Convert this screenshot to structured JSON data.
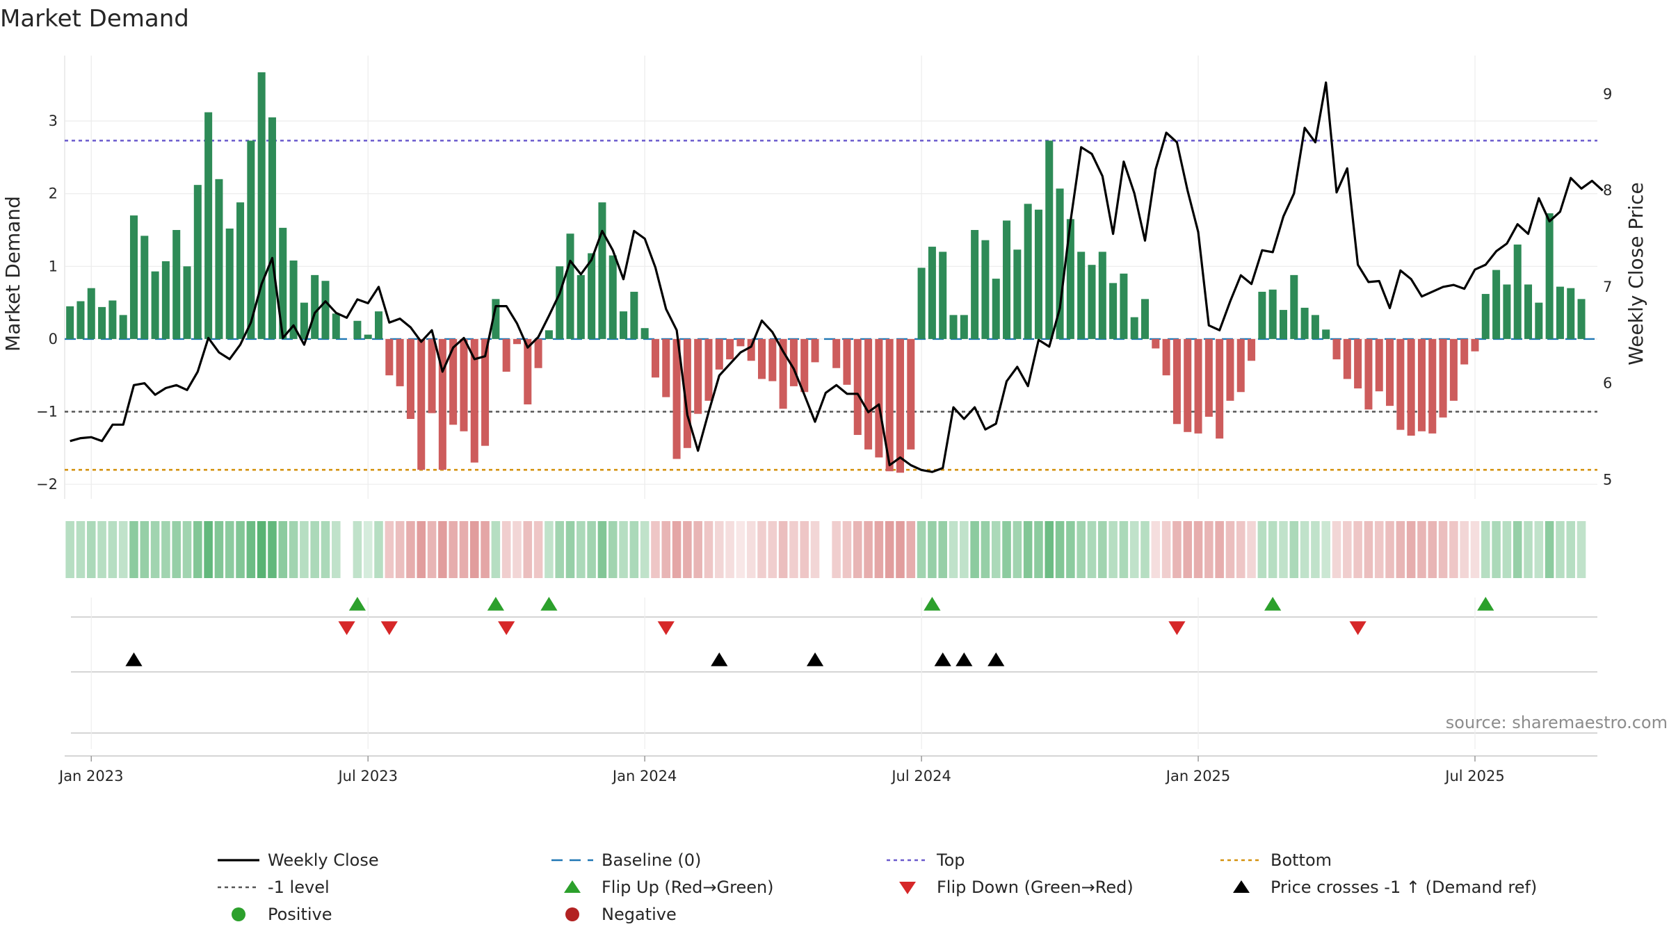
{
  "chart_data": {
    "type": "bar",
    "title": "Market Demand",
    "ylabel": "Market Demand",
    "ylabel_right": "Weekly Close Price",
    "source": "source: sharemaestro.com",
    "ylim": [
      -2.2,
      3.9
    ],
    "ylim_right": [
      4.8,
      9.4
    ],
    "yticks": [
      {
        "v": -2,
        "label": "−2"
      },
      {
        "v": -1,
        "label": "−1"
      },
      {
        "v": 0,
        "label": "0"
      },
      {
        "v": 1,
        "label": "1"
      },
      {
        "v": 2,
        "label": "2"
      },
      {
        "v": 3,
        "label": "3"
      }
    ],
    "yticks_right": [
      {
        "v": 5,
        "label": "5"
      },
      {
        "v": 6,
        "label": "6"
      },
      {
        "v": 7,
        "label": "7"
      },
      {
        "v": 8,
        "label": "8"
      },
      {
        "v": 9,
        "label": "9"
      }
    ],
    "x_start": "2022-12-19",
    "week_count": 144,
    "xticks": [
      {
        "week": 2,
        "label": "Jan 2023"
      },
      {
        "week": 28,
        "label": "Jul 2023"
      },
      {
        "week": 54,
        "label": "Jan 2024"
      },
      {
        "week": 80,
        "label": "Jul 2024"
      },
      {
        "week": 106,
        "label": "Jan 2025"
      },
      {
        "week": 132,
        "label": "Jul 2025"
      }
    ],
    "reference_lines": [
      {
        "name": "Baseline (0)",
        "value": 0,
        "color": "#1f77b4"
      },
      {
        "name": "Top",
        "value": 2.73,
        "color": "#6a5acd"
      },
      {
        "name": "-1 level",
        "value": -1,
        "color": "#555555"
      },
      {
        "name": "Bottom",
        "value": -1.8,
        "color": "#d4920f"
      }
    ],
    "colors": {
      "positive": "#2e8b57",
      "negative": "#cd5c5c",
      "price": "#000000",
      "flip_up": "#2ca02c",
      "flip_down": "#d62728",
      "cross": "#000000",
      "legend_positive": "#2ca02c",
      "legend_negative": "#b22222"
    },
    "demand": [
      0.45,
      0.52,
      0.7,
      0.44,
      0.53,
      0.33,
      1.7,
      1.42,
      0.93,
      1.07,
      1.5,
      1.0,
      2.12,
      3.12,
      2.2,
      1.52,
      1.88,
      2.73,
      3.67,
      3.05,
      1.53,
      1.08,
      0.5,
      0.88,
      0.8,
      0.35,
      0.0,
      0.25,
      0.06,
      0.38,
      -0.5,
      -0.65,
      -1.1,
      -1.8,
      -1.02,
      -1.8,
      -1.18,
      -1.27,
      -1.7,
      -1.47,
      0.55,
      -0.45,
      -0.07,
      -0.9,
      -0.4,
      0.12,
      1.0,
      1.45,
      0.88,
      1.18,
      1.88,
      1.15,
      0.38,
      0.65,
      0.15,
      -0.53,
      -0.8,
      -1.65,
      -1.5,
      -1.03,
      -0.85,
      -0.42,
      -0.28,
      -0.1,
      -0.3,
      -0.55,
      -0.58,
      -0.96,
      -0.65,
      -0.73,
      -0.32,
      0.0,
      -0.4,
      -0.63,
      -1.32,
      -1.52,
      -1.63,
      -1.82,
      -1.84,
      -1.52,
      0.98,
      1.27,
      1.2,
      0.33,
      0.33,
      1.5,
      1.36,
      0.83,
      1.63,
      1.23,
      1.86,
      1.78,
      2.73,
      2.07,
      1.65,
      1.2,
      1.02,
      1.2,
      0.77,
      0.9,
      0.3,
      0.55,
      -0.13,
      -0.5,
      -1.17,
      -1.28,
      -1.3,
      -1.07,
      -1.37,
      -0.85,
      -0.73,
      -0.3,
      0.65,
      0.68,
      0.4,
      0.88,
      0.43,
      0.33,
      0.13,
      -0.28,
      -0.55,
      -0.68,
      -0.97,
      -0.72,
      -0.92,
      -1.25,
      -1.33,
      -1.27,
      -1.3,
      -1.08,
      -0.85,
      -0.35,
      -0.17,
      0.62,
      0.95,
      0.75,
      1.3,
      0.75,
      0.5,
      1.73,
      0.72,
      0.7,
      0.55
    ],
    "price": [
      5.4,
      5.43,
      5.44,
      5.4,
      5.57,
      5.57,
      5.98,
      6.0,
      5.88,
      5.95,
      5.98,
      5.93,
      6.12,
      6.47,
      6.32,
      6.25,
      6.4,
      6.63,
      7.03,
      7.3,
      6.47,
      6.6,
      6.4,
      6.73,
      6.85,
      6.73,
      6.68,
      6.87,
      6.83,
      7.0,
      6.63,
      6.67,
      6.58,
      6.43,
      6.55,
      6.12,
      6.37,
      6.47,
      6.25,
      6.28,
      6.8,
      6.8,
      6.62,
      6.37,
      6.48,
      6.7,
      6.93,
      7.27,
      7.13,
      7.28,
      7.58,
      7.38,
      7.08,
      7.58,
      7.5,
      7.2,
      6.77,
      6.55,
      5.67,
      5.3,
      5.7,
      6.08,
      6.2,
      6.32,
      6.38,
      6.65,
      6.53,
      6.33,
      6.15,
      5.88,
      5.6,
      5.9,
      5.98,
      5.89,
      5.89,
      5.7,
      5.78,
      5.15,
      5.23,
      5.15,
      5.1,
      5.08,
      5.12,
      5.75,
      5.63,
      5.75,
      5.52,
      5.58,
      6.02,
      6.17,
      5.97,
      6.45,
      6.38,
      6.78,
      7.68,
      8.45,
      8.38,
      8.15,
      7.55,
      8.3,
      7.97,
      7.48,
      8.22,
      8.6,
      8.5,
      8.0,
      7.57,
      6.6,
      6.55,
      6.85,
      7.12,
      7.03,
      7.38,
      7.36,
      7.73,
      7.97,
      8.65,
      8.5,
      9.12,
      7.98,
      8.23,
      7.23,
      7.05,
      7.06,
      6.78,
      7.17,
      7.08,
      6.9,
      6.95,
      7.0,
      7.02,
      6.98,
      7.18,
      7.23,
      7.37,
      7.45,
      7.65,
      7.55,
      7.92,
      7.68,
      7.78,
      8.13,
      8.02,
      8.1,
      8.0
    ],
    "heat_strip": [
      0.35,
      0.35,
      0.4,
      0.35,
      0.35,
      0.3,
      0.55,
      0.5,
      0.45,
      0.45,
      0.5,
      0.45,
      0.6,
      0.75,
      0.6,
      0.55,
      0.6,
      0.7,
      0.8,
      0.75,
      0.55,
      0.45,
      0.35,
      0.4,
      0.4,
      0.3,
      0.2,
      0.3,
      0.2,
      0.35,
      0.35,
      0.4,
      0.5,
      0.6,
      0.45,
      0.6,
      0.5,
      0.5,
      0.6,
      0.55,
      0.35,
      0.3,
      0.25,
      0.4,
      0.35,
      0.3,
      0.45,
      0.5,
      0.4,
      0.45,
      0.6,
      0.45,
      0.35,
      0.4,
      0.3,
      0.35,
      0.45,
      0.55,
      0.5,
      0.45,
      0.35,
      0.25,
      0.2,
      0.15,
      0.2,
      0.3,
      0.3,
      0.4,
      0.3,
      0.35,
      0.25,
      0.2,
      0.3,
      0.35,
      0.45,
      0.5,
      0.55,
      0.6,
      0.6,
      0.5,
      0.45,
      0.5,
      0.5,
      0.3,
      0.3,
      0.55,
      0.5,
      0.4,
      0.55,
      0.45,
      0.6,
      0.55,
      0.7,
      0.6,
      0.55,
      0.45,
      0.4,
      0.45,
      0.35,
      0.4,
      0.3,
      0.35,
      0.2,
      0.3,
      0.45,
      0.5,
      0.5,
      0.45,
      0.5,
      0.4,
      0.35,
      0.25,
      0.35,
      0.35,
      0.3,
      0.4,
      0.3,
      0.3,
      0.25,
      0.25,
      0.3,
      0.35,
      0.4,
      0.35,
      0.4,
      0.45,
      0.5,
      0.45,
      0.45,
      0.4,
      0.35,
      0.25,
      0.2,
      0.35,
      0.4,
      0.35,
      0.5,
      0.35,
      0.3,
      0.55,
      0.35,
      0.35,
      0.3
    ],
    "flip_up_weeks": [
      27,
      40,
      45,
      81,
      113,
      133
    ],
    "flip_down_weeks": [
      26,
      30,
      41,
      56,
      104,
      121
    ],
    "price_cross_weeks": [
      6,
      61,
      70,
      82,
      84,
      87
    ],
    "legend": [
      {
        "key": "close",
        "label": "Weekly Close"
      },
      {
        "key": "baseline",
        "label": "Baseline (0)"
      },
      {
        "key": "top",
        "label": "Top"
      },
      {
        "key": "bottom",
        "label": "Bottom"
      },
      {
        "key": "minus1",
        "label": "-1 level"
      },
      {
        "key": "flipup",
        "label": "Flip Up (Red→Green)"
      },
      {
        "key": "flipdown",
        "label": "Flip Down (Green→Red)"
      },
      {
        "key": "cross",
        "label": "Price crosses -1 ↑ (Demand ref)"
      },
      {
        "key": "positive",
        "label": "Positive"
      },
      {
        "key": "negative",
        "label": "Negative"
      }
    ]
  }
}
